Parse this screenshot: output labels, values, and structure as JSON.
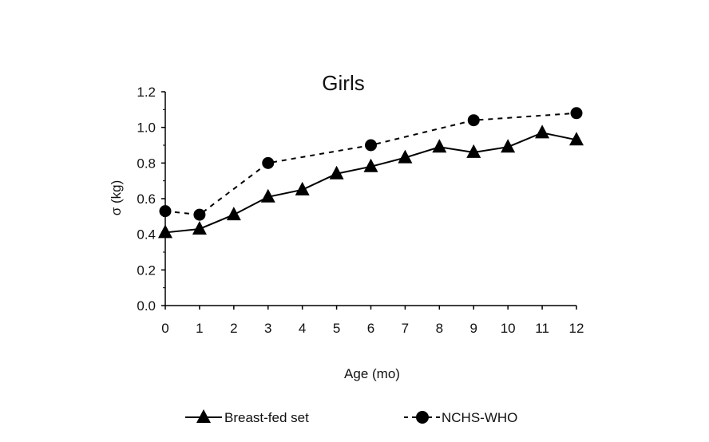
{
  "chart_data": {
    "type": "line",
    "title": "Girls",
    "xlabel": "Age (mo)",
    "ylabel": "σ (kg)",
    "x_ticks": [
      "0",
      "1",
      "2",
      "3",
      "4",
      "5",
      "6",
      "7",
      "8",
      "9",
      "10",
      "11",
      "12"
    ],
    "y_ticks": [
      "0.0",
      "0.2",
      "0.4",
      "0.6",
      "0.8",
      "1.0",
      "1.2"
    ],
    "xlim": [
      0,
      12
    ],
    "ylim": [
      0,
      1.2
    ],
    "grid": false,
    "legend_position": "bottom",
    "series": [
      {
        "name": "Breast-fed set",
        "marker": "triangle",
        "line_style": "solid",
        "x": [
          0,
          1,
          2,
          3,
          4,
          5,
          6,
          7,
          8,
          9,
          10,
          11,
          12
        ],
        "values": [
          0.41,
          0.43,
          0.51,
          0.61,
          0.65,
          0.74,
          0.78,
          0.83,
          0.89,
          0.86,
          0.89,
          0.97,
          0.93
        ]
      },
      {
        "name": "NCHS-WHO",
        "marker": "circle",
        "line_style": "dashed",
        "x": [
          0,
          1,
          3,
          6,
          9,
          12
        ],
        "values": [
          0.53,
          0.51,
          0.8,
          0.9,
          1.04,
          1.08
        ]
      }
    ]
  }
}
